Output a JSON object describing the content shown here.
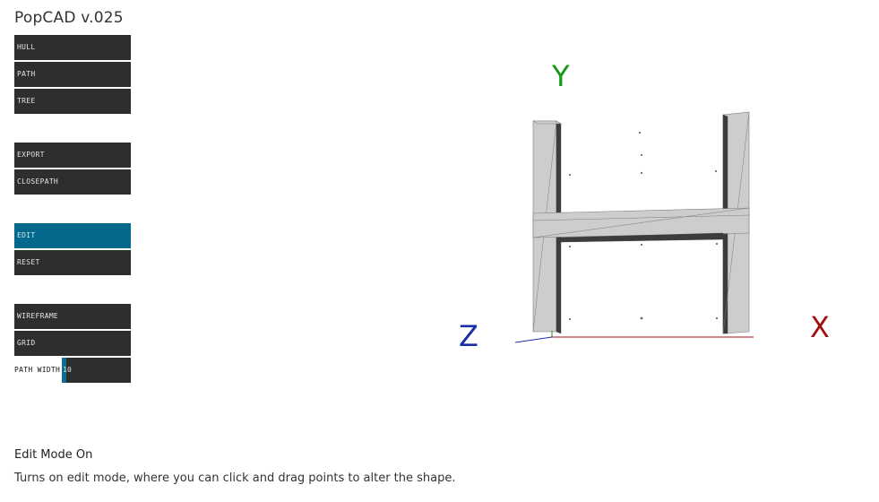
{
  "app": {
    "title": "PopCAD v.025"
  },
  "sidebar": {
    "groups": [
      [
        {
          "label": "HULL"
        },
        {
          "label": "PATH"
        },
        {
          "label": "TREE"
        }
      ],
      [
        {
          "label": "EXPORT"
        },
        {
          "label": "CLOSEPATH"
        }
      ],
      [
        {
          "label": "EDIT",
          "active": true
        },
        {
          "label": "RESET"
        }
      ],
      [
        {
          "label": "WIREFRAME"
        },
        {
          "label": "GRID"
        }
      ]
    ],
    "path_width": {
      "label": "PATH WIDTH",
      "value": "10",
      "fill_fraction": 0.06
    }
  },
  "viewport": {
    "axes": {
      "x": "X",
      "y": "Y",
      "z": "Z"
    },
    "colors": {
      "x": "#a01010",
      "y": "#139a13",
      "z": "#1a2ea8",
      "shape_face": "#cdcdcd",
      "shape_edge": "#7c7c7c"
    }
  },
  "help": {
    "title": "Edit Mode On",
    "description": "Turns on edit mode, where you can click and drag points to alter the shape."
  }
}
